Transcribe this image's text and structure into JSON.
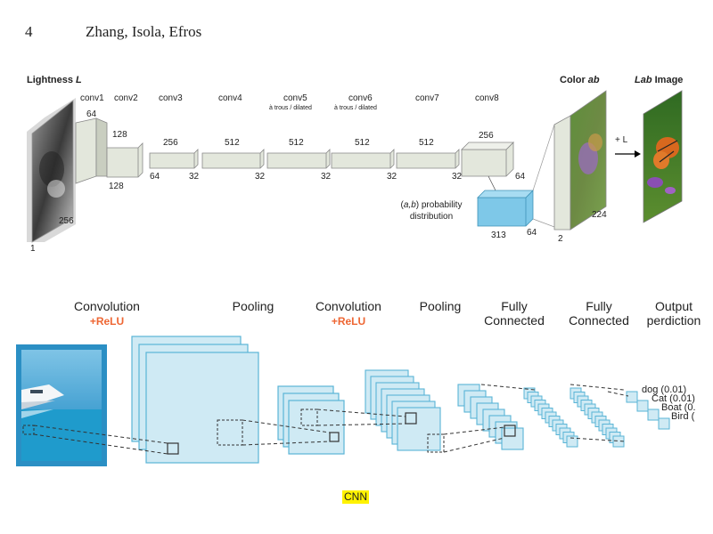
{
  "header": {
    "page_number": "4",
    "authors": "Zhang, Isola, Efros"
  },
  "colorization": {
    "input_label_prefix": "Lightness",
    "input_label_var": "L",
    "output_ab_var": "ab",
    "output_ab_prefix": "Color",
    "output_lab_var": "Lab",
    "output_lab_suffix": "Image",
    "plus_l": "+ L",
    "layers": [
      {
        "name": "conv1",
        "sub": "",
        "top_dim": "64",
        "bottom_dim": ""
      },
      {
        "name": "conv2",
        "sub": "",
        "top_dim": "128",
        "bottom_dim": "128"
      },
      {
        "name": "conv3",
        "sub": "",
        "top_dim": "256",
        "bottom_dim": "64"
      },
      {
        "name": "conv4",
        "sub": "",
        "top_dim": "512",
        "bottom_dim": "32"
      },
      {
        "name": "conv5",
        "sub": "à trous / dilated",
        "top_dim": "512",
        "bottom_dim": "32"
      },
      {
        "name": "conv6",
        "sub": "à trous / dilated",
        "top_dim": "512",
        "bottom_dim": "32"
      },
      {
        "name": "conv7",
        "sub": "",
        "top_dim": "512",
        "bottom_dim": "32"
      },
      {
        "name": "conv8",
        "sub": "",
        "top_dim": "256",
        "bottom_dim": "32"
      }
    ],
    "input_dims": {
      "height": "256",
      "channels": "1"
    },
    "conv8_side_dim": "64",
    "prob_label_var": "a,b",
    "prob_label_rest": "probability",
    "prob_label_line2": "distribution",
    "prob_dims": {
      "bottom": "313",
      "side": "64"
    },
    "output_dims": {
      "channels": "2",
      "size": "224"
    }
  },
  "cnn": {
    "stages": [
      {
        "title": "Convolution",
        "sub": "+ReLU"
      },
      {
        "title": "Pooling",
        "sub": ""
      },
      {
        "title": "Convolution",
        "sub": "+ReLU"
      },
      {
        "title": "Pooling",
        "sub": ""
      },
      {
        "title": "Fully",
        "title2": "Connected",
        "sub": ""
      },
      {
        "title": "Fully",
        "title2": "Connected",
        "sub": ""
      },
      {
        "title": "Output",
        "title2": "perdiction",
        "sub": ""
      }
    ],
    "outputs": [
      "dog (0.01)",
      "Cat (0.01)",
      "Boat (0.",
      "Bird ("
    ],
    "sub_color": "#ee6633",
    "box_fill": "#cfeaf4",
    "box_stroke": "#5ab4d6"
  },
  "caption": "CNN"
}
